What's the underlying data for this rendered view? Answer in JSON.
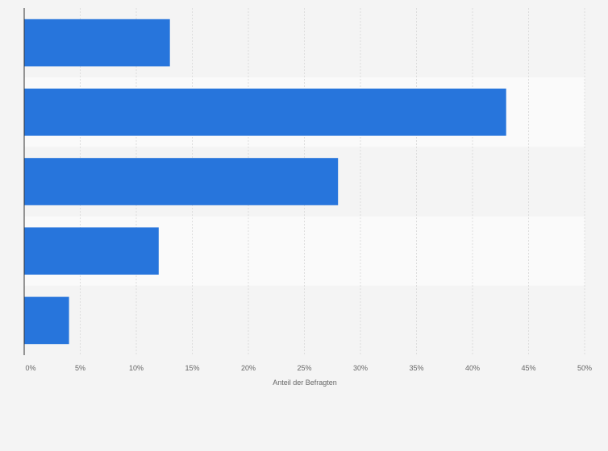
{
  "chart_data": {
    "type": "bar",
    "orientation": "horizontal",
    "categories": [
      "",
      "",
      "",
      "",
      ""
    ],
    "values": [
      13,
      43,
      28,
      12,
      4
    ],
    "xlabel": "Anteil der Befragten",
    "ylabel": "",
    "xlim": [
      0,
      50
    ],
    "x_ticks": [
      0,
      5,
      10,
      15,
      20,
      25,
      30,
      35,
      40,
      45,
      50
    ],
    "x_tick_labels": [
      "0%",
      "5%",
      "10%",
      "15%",
      "20%",
      "25%",
      "30%",
      "35%",
      "40%",
      "45%",
      "50%"
    ],
    "grid": true,
    "legend": "none",
    "colors": {
      "bar": "#2775dc",
      "band_even": "#f4f4f4",
      "band_odd": "#fafafa",
      "gridline": "#dddddd",
      "axis": "#333333",
      "page_background": "#f4f4f4"
    }
  }
}
